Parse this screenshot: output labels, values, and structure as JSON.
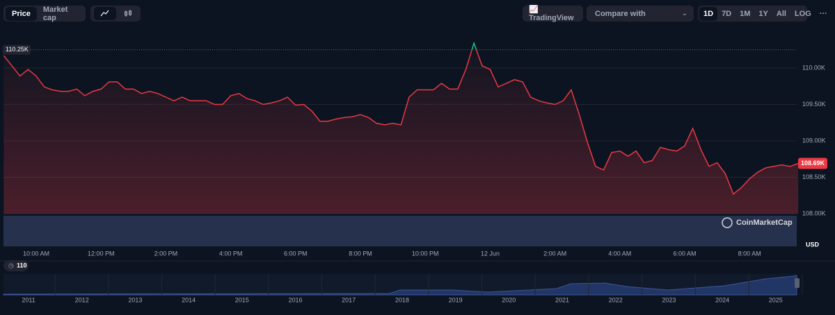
{
  "toolbar": {
    "tabs": [
      "Price",
      "Market cap"
    ],
    "tradingview": "TradingView",
    "compare": "Compare with",
    "periods": [
      "1D",
      "7D",
      "1M",
      "1Y",
      "All",
      "LOG",
      "···"
    ]
  },
  "chart_data": {
    "type": "line",
    "color": "#ea3943",
    "above_color": "#16c784",
    "categories": [
      null,
      null,
      null,
      null,
      "10:00 AM",
      null,
      null,
      null,
      null,
      null,
      null,
      null,
      "12:00 PM",
      null,
      null,
      null,
      null,
      null,
      null,
      null,
      "2:00 PM",
      null,
      null,
      null,
      null,
      null,
      null,
      null,
      "4:00 PM",
      null,
      null,
      null,
      null,
      null,
      null,
      null,
      "6:00 PM",
      null,
      null,
      null,
      null,
      null,
      null,
      null,
      "8:00 PM",
      null,
      null,
      null,
      null,
      null,
      null,
      null,
      "10:00 PM",
      null,
      null,
      null,
      null,
      null,
      null,
      null,
      "12 Jun",
      null,
      null,
      null,
      null,
      null,
      null,
      null,
      "2:00 AM",
      null,
      null,
      null,
      null,
      null,
      null,
      null,
      "4:00 AM",
      null,
      null,
      null,
      null,
      null,
      null,
      null,
      "6:00 AM",
      null,
      null,
      null,
      null,
      null,
      null,
      null,
      "8:00 AM",
      null,
      null,
      null,
      null,
      null,
      null
    ],
    "values": [
      110170,
      110030,
      109890,
      109980,
      109890,
      109740,
      109700,
      109680,
      109680,
      109710,
      109620,
      109680,
      109710,
      109810,
      109810,
      109710,
      109710,
      109650,
      109680,
      109650,
      109600,
      109550,
      109600,
      109550,
      109550,
      109550,
      109500,
      109500,
      109620,
      109650,
      109580,
      109550,
      109500,
      109520,
      109550,
      109600,
      109490,
      109500,
      109410,
      109270,
      109270,
      109300,
      109320,
      109330,
      109360,
      109320,
      109240,
      109220,
      109240,
      109220,
      109600,
      109700,
      109700,
      109700,
      109790,
      109710,
      109710,
      109980,
      110340,
      110030,
      109980,
      109740,
      109790,
      109840,
      109810,
      109600,
      109550,
      109520,
      109500,
      109550,
      109700,
      109360,
      108980,
      108650,
      108600,
      108840,
      108860,
      108790,
      108860,
      108700,
      108730,
      108910,
      108880,
      108860,
      108930,
      109170,
      108880,
      108650,
      108700,
      108550,
      108270,
      108360,
      108480,
      108570,
      108630,
      108650,
      108670,
      108650,
      108690
    ],
    "ylim": [
      108000,
      110500
    ],
    "yticks": [
      {
        "value": 108000,
        "label": "108.00K"
      },
      {
        "value": 108500,
        "label": "108.50K"
      },
      {
        "value": 109000,
        "label": "109.00K"
      },
      {
        "value": 109500,
        "label": "109.50K"
      },
      {
        "value": 110000,
        "label": "110.00K"
      }
    ],
    "grid": true,
    "reference": {
      "value": 110250,
      "label": "110.25K"
    },
    "last_label": "108.69K",
    "currency": "USD",
    "watermark": "CoinMarketCap"
  },
  "navigator": {
    "badge": "110",
    "years": [
      "2011",
      "2012",
      "2013",
      "2014",
      "2015",
      "2016",
      "2017",
      "2018",
      "2019",
      "2020",
      "2021",
      "2022",
      "2023",
      "2024",
      "2025"
    ]
  }
}
